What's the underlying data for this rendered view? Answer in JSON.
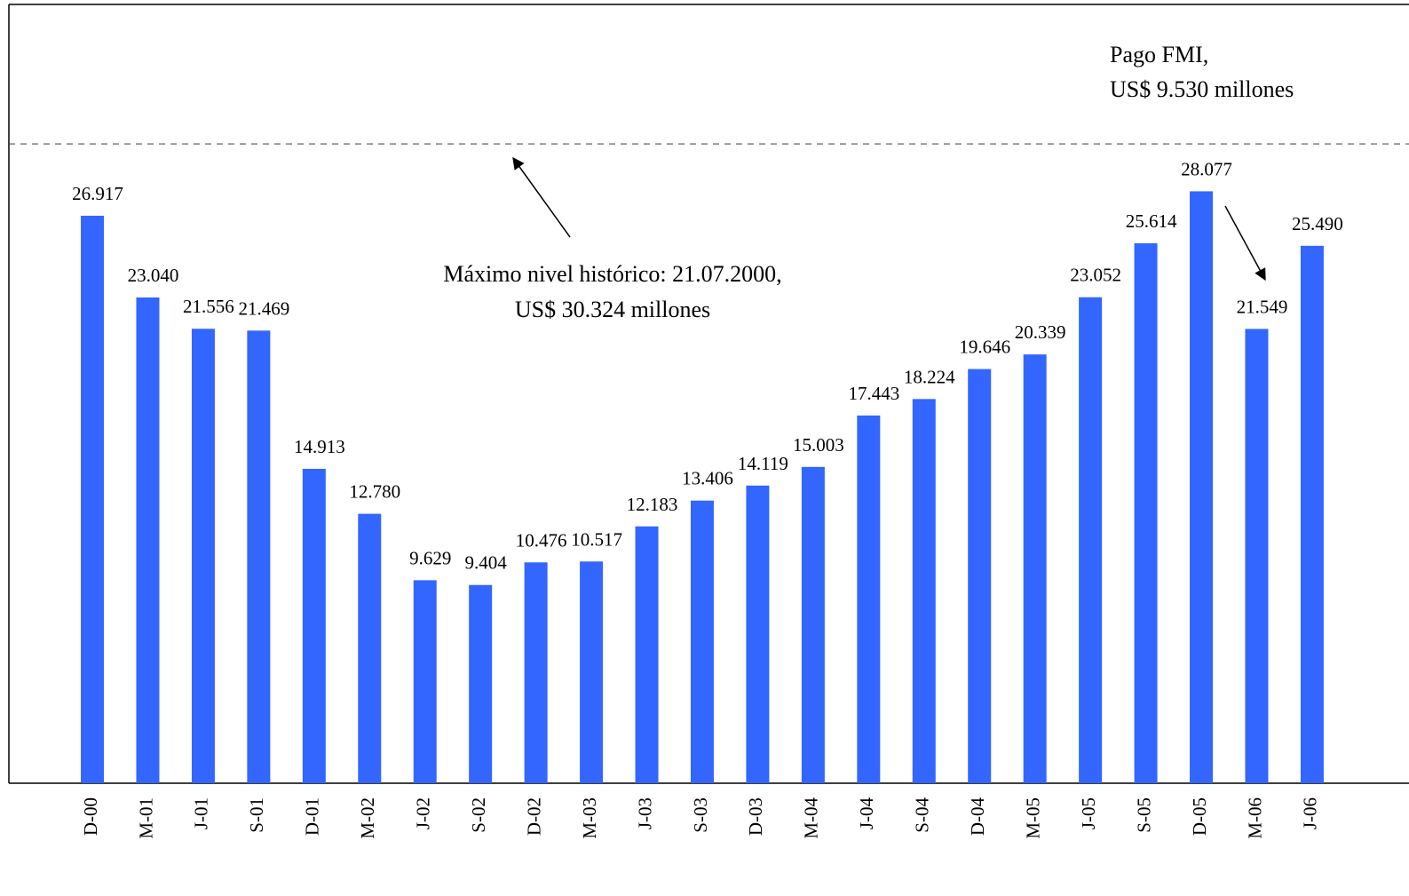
{
  "chart_data": {
    "type": "bar",
    "categories": [
      "D-00",
      "M-01",
      "J-01",
      "S-01",
      "D-01",
      "M-02",
      "J-02",
      "S-02",
      "D-02",
      "M-03",
      "J-03",
      "S-03",
      "D-03",
      "M-04",
      "J-04",
      "S-04",
      "D-04",
      "M-05",
      "J-05",
      "S-05",
      "D-05",
      "M-06",
      "J-06"
    ],
    "values": [
      26917,
      23040,
      21556,
      21469,
      14913,
      12780,
      9629,
      9404,
      10476,
      10517,
      12183,
      13406,
      14119,
      15003,
      17443,
      18224,
      19646,
      20339,
      23052,
      25614,
      28077,
      21549,
      25490
    ],
    "value_labels": [
      "26.917",
      "23.040",
      "21.556",
      "21.469",
      "14.913",
      "12.780",
      "9.629",
      "9.404",
      "10.476",
      "10.517",
      "12.183",
      "13.406",
      "14.119",
      "15.003",
      "17.443",
      "18.224",
      "19.646",
      "20.339",
      "23.052",
      "25.614",
      "28.077",
      "21.549",
      "25.490"
    ],
    "color": "#3366ff",
    "ylim": [
      0,
      36940
    ],
    "reference_line": 30324,
    "annotations": [
      "Pago FMI,",
      "US$ 9.530 millones",
      "Máximo nivel histórico: 21.07.2000,",
      "US$ 30.324 millones"
    ]
  }
}
